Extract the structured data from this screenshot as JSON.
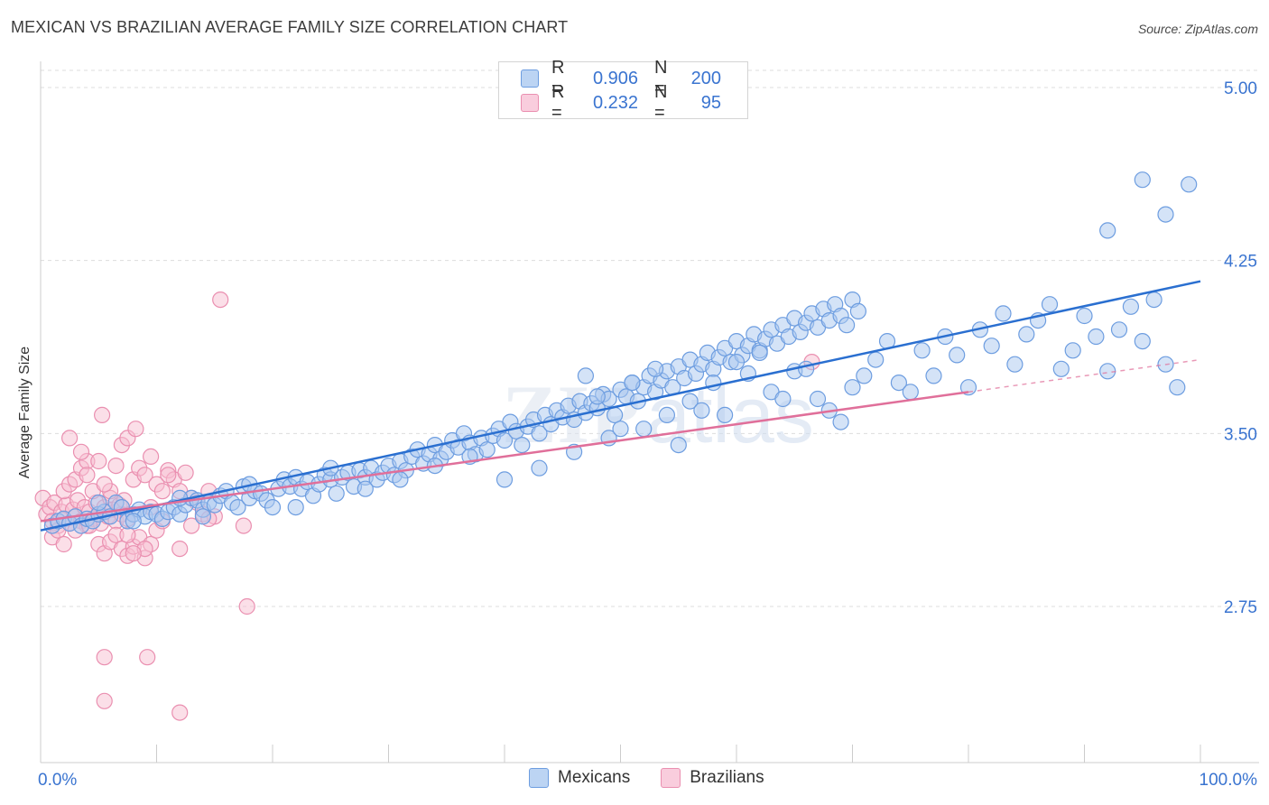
{
  "header": {
    "title": "MEXICAN VS BRAZILIAN AVERAGE FAMILY SIZE CORRELATION CHART",
    "source": "Source: ZipAtlas.com"
  },
  "watermark": "ZIPatlas",
  "legend": {
    "rows": [
      {
        "r_label": "R =",
        "r_value": "0.906",
        "n_label": "N =",
        "n_value": "200",
        "color": "#8fb6ea"
      },
      {
        "r_label": "R =",
        "r_value": "0.232",
        "n_label": "N =",
        "n_value": "95",
        "color": "#f2a8c0"
      }
    ]
  },
  "bottom_legend": [
    {
      "label": "Mexicans",
      "color": "#8fb6ea"
    },
    {
      "label": "Brazilians",
      "color": "#f2a8c0"
    }
  ],
  "colors": {
    "blue_fill": "#a9c8f0",
    "blue_stroke": "#6d9de0",
    "blue_line": "#2a6fd0",
    "pink_fill": "#f7c0d2",
    "pink_stroke": "#ea8fb0",
    "pink_line": "#e06f9a",
    "tick_label": "#3a74d0",
    "grid": "#dddddd"
  },
  "chart_data": {
    "type": "scatter",
    "title": "MEXICAN VS BRAZILIAN AVERAGE FAMILY SIZE CORRELATION CHART",
    "xlabel": "",
    "ylabel": "Average Family Size",
    "xlim": [
      0,
      100
    ],
    "ylim": [
      2.0,
      5.0
    ],
    "x_tick_labels": [
      "0.0%",
      "100.0%"
    ],
    "y_ticks": [
      2.75,
      3.5,
      4.25,
      5.0
    ],
    "y_tick_labels": [
      "2.75",
      "3.50",
      "4.25",
      "5.00"
    ],
    "grid": true,
    "legend_position": "top-center",
    "series": [
      {
        "name": "Mexicans",
        "r": 0.906,
        "n": 200,
        "trend": {
          "x": [
            0,
            100
          ],
          "y": [
            3.08,
            4.16
          ]
        },
        "points": [
          [
            1,
            3.1
          ],
          [
            1.5,
            3.12
          ],
          [
            2,
            3.13
          ],
          [
            2.5,
            3.11
          ],
          [
            3,
            3.14
          ],
          [
            3.5,
            3.1
          ],
          [
            4,
            3.13
          ],
          [
            4.5,
            3.12
          ],
          [
            5,
            3.15
          ],
          [
            5.5,
            3.16
          ],
          [
            6,
            3.14
          ],
          [
            6.5,
            3.2
          ],
          [
            7,
            3.18
          ],
          [
            7.5,
            3.12
          ],
          [
            8,
            3.15
          ],
          [
            8.5,
            3.17
          ],
          [
            9,
            3.14
          ],
          [
            9.5,
            3.16
          ],
          [
            10,
            3.15
          ],
          [
            10.5,
            3.13
          ],
          [
            11,
            3.16
          ],
          [
            11.5,
            3.18
          ],
          [
            12,
            3.15
          ],
          [
            12.5,
            3.19
          ],
          [
            13,
            3.22
          ],
          [
            13.5,
            3.21
          ],
          [
            14,
            3.17
          ],
          [
            14.5,
            3.2
          ],
          [
            15,
            3.19
          ],
          [
            15.5,
            3.23
          ],
          [
            16,
            3.25
          ],
          [
            16.5,
            3.2
          ],
          [
            17,
            3.18
          ],
          [
            17.5,
            3.27
          ],
          [
            18,
            3.22
          ],
          [
            18.5,
            3.25
          ],
          [
            19,
            3.24
          ],
          [
            19.5,
            3.21
          ],
          [
            20,
            3.18
          ],
          [
            20.5,
            3.26
          ],
          [
            21,
            3.3
          ],
          [
            21.5,
            3.27
          ],
          [
            22,
            3.31
          ],
          [
            22.5,
            3.26
          ],
          [
            23,
            3.29
          ],
          [
            23.5,
            3.23
          ],
          [
            24,
            3.28
          ],
          [
            24.5,
            3.32
          ],
          [
            25,
            3.3
          ],
          [
            25.5,
            3.24
          ],
          [
            26,
            3.31
          ],
          [
            26.5,
            3.33
          ],
          [
            27,
            3.27
          ],
          [
            27.5,
            3.34
          ],
          [
            28,
            3.31
          ],
          [
            28.5,
            3.35
          ],
          [
            29,
            3.3
          ],
          [
            29.5,
            3.33
          ],
          [
            30,
            3.36
          ],
          [
            30.5,
            3.32
          ],
          [
            31,
            3.38
          ],
          [
            31.5,
            3.34
          ],
          [
            32,
            3.4
          ],
          [
            32.5,
            3.43
          ],
          [
            33,
            3.37
          ],
          [
            33.5,
            3.41
          ],
          [
            34,
            3.45
          ],
          [
            34.5,
            3.39
          ],
          [
            35,
            3.42
          ],
          [
            35.5,
            3.47
          ],
          [
            36,
            3.44
          ],
          [
            36.5,
            3.5
          ],
          [
            37,
            3.46
          ],
          [
            37.5,
            3.41
          ],
          [
            38,
            3.48
          ],
          [
            38.5,
            3.43
          ],
          [
            39,
            3.49
          ],
          [
            39.5,
            3.52
          ],
          [
            40,
            3.47
          ],
          [
            40.5,
            3.55
          ],
          [
            41,
            3.51
          ],
          [
            41.5,
            3.45
          ],
          [
            42,
            3.53
          ],
          [
            42.5,
            3.56
          ],
          [
            43,
            3.5
          ],
          [
            43.5,
            3.58
          ],
          [
            44,
            3.54
          ],
          [
            44.5,
            3.6
          ],
          [
            45,
            3.57
          ],
          [
            45.5,
            3.62
          ],
          [
            46,
            3.56
          ],
          [
            46.5,
            3.64
          ],
          [
            47,
            3.59
          ],
          [
            47.5,
            3.63
          ],
          [
            48,
            3.61
          ],
          [
            48.5,
            3.67
          ],
          [
            49,
            3.65
          ],
          [
            49.5,
            3.58
          ],
          [
            50,
            3.69
          ],
          [
            50.5,
            3.66
          ],
          [
            51,
            3.72
          ],
          [
            51.5,
            3.64
          ],
          [
            52,
            3.7
          ],
          [
            52.5,
            3.75
          ],
          [
            53,
            3.68
          ],
          [
            53.5,
            3.73
          ],
          [
            54,
            3.77
          ],
          [
            54.5,
            3.7
          ],
          [
            55,
            3.79
          ],
          [
            55.5,
            3.74
          ],
          [
            56,
            3.82
          ],
          [
            56.5,
            3.76
          ],
          [
            57,
            3.8
          ],
          [
            57.5,
            3.85
          ],
          [
            58,
            3.78
          ],
          [
            58.5,
            3.83
          ],
          [
            59,
            3.87
          ],
          [
            59.5,
            3.81
          ],
          [
            60,
            3.9
          ],
          [
            60.5,
            3.84
          ],
          [
            61,
            3.88
          ],
          [
            61.5,
            3.93
          ],
          [
            62,
            3.86
          ],
          [
            62.5,
            3.91
          ],
          [
            63,
            3.95
          ],
          [
            63.5,
            3.89
          ],
          [
            64,
            3.97
          ],
          [
            64.5,
            3.92
          ],
          [
            65,
            4.0
          ],
          [
            65.5,
            3.94
          ],
          [
            66,
            3.98
          ],
          [
            66.5,
            4.02
          ],
          [
            67,
            3.96
          ],
          [
            67.5,
            4.04
          ],
          [
            68,
            3.99
          ],
          [
            68.5,
            4.06
          ],
          [
            69,
            4.01
          ],
          [
            69.5,
            3.97
          ],
          [
            70,
            4.08
          ],
          [
            70.5,
            4.03
          ],
          [
            5,
            3.2
          ],
          [
            8,
            3.12
          ],
          [
            12,
            3.22
          ],
          [
            14,
            3.14
          ],
          [
            18,
            3.28
          ],
          [
            22,
            3.18
          ],
          [
            25,
            3.35
          ],
          [
            28,
            3.26
          ],
          [
            31,
            3.3
          ],
          [
            34,
            3.36
          ],
          [
            37,
            3.4
          ],
          [
            40,
            3.3
          ],
          [
            43,
            3.35
          ],
          [
            46,
            3.42
          ],
          [
            47,
            3.75
          ],
          [
            48,
            3.66
          ],
          [
            49,
            3.48
          ],
          [
            50,
            3.52
          ],
          [
            51,
            3.72
          ],
          [
            52,
            3.52
          ],
          [
            53,
            3.78
          ],
          [
            54,
            3.58
          ],
          [
            55,
            3.45
          ],
          [
            56,
            3.64
          ],
          [
            57,
            3.6
          ],
          [
            58,
            3.72
          ],
          [
            59,
            3.58
          ],
          [
            60,
            3.81
          ],
          [
            61,
            3.76
          ],
          [
            62,
            3.85
          ],
          [
            63,
            3.68
          ],
          [
            64,
            3.65
          ],
          [
            65,
            3.77
          ],
          [
            66,
            3.78
          ],
          [
            67,
            3.65
          ],
          [
            68,
            3.6
          ],
          [
            69,
            3.55
          ],
          [
            70,
            3.7
          ],
          [
            71,
            3.75
          ],
          [
            72,
            3.82
          ],
          [
            73,
            3.9
          ],
          [
            74,
            3.72
          ],
          [
            75,
            3.68
          ],
          [
            76,
            3.86
          ],
          [
            77,
            3.75
          ],
          [
            78,
            3.92
          ],
          [
            79,
            3.84
          ],
          [
            80,
            3.7
          ],
          [
            81,
            3.95
          ],
          [
            82,
            3.88
          ],
          [
            83,
            4.02
          ],
          [
            84,
            3.8
          ],
          [
            85,
            3.93
          ],
          [
            86,
            3.99
          ],
          [
            87,
            4.06
          ],
          [
            88,
            3.78
          ],
          [
            89,
            3.86
          ],
          [
            90,
            4.01
          ],
          [
            91,
            3.92
          ],
          [
            92,
            3.77
          ],
          [
            93,
            3.95
          ],
          [
            94,
            4.05
          ],
          [
            95,
            3.9
          ],
          [
            96,
            4.08
          ],
          [
            97,
            3.8
          ],
          [
            98,
            3.7
          ],
          [
            95,
            4.6
          ],
          [
            97,
            4.45
          ],
          [
            99,
            4.58
          ],
          [
            92,
            4.38
          ]
        ]
      },
      {
        "name": "Brazilians",
        "r": 0.232,
        "n": 95,
        "trend": {
          "x": [
            0,
            80
          ],
          "y": [
            3.12,
            3.68
          ]
        },
        "trend_dashed": {
          "x": [
            80,
            100
          ],
          "y": [
            3.68,
            3.82
          ]
        },
        "points": [
          [
            0.2,
            3.22
          ],
          [
            0.5,
            3.15
          ],
          [
            0.8,
            3.18
          ],
          [
            1,
            3.12
          ],
          [
            1.2,
            3.2
          ],
          [
            1.5,
            3.1
          ],
          [
            1.8,
            3.16
          ],
          [
            2,
            3.13
          ],
          [
            2.2,
            3.19
          ],
          [
            2.5,
            3.11
          ],
          [
            2.8,
            3.17
          ],
          [
            3,
            3.14
          ],
          [
            3.2,
            3.21
          ],
          [
            3.5,
            3.12
          ],
          [
            3.8,
            3.18
          ],
          [
            4,
            3.1
          ],
          [
            4.2,
            3.16
          ],
          [
            4.5,
            3.13
          ],
          [
            4.8,
            3.2
          ],
          [
            5,
            3.15
          ],
          [
            5.2,
            3.11
          ],
          [
            5.5,
            3.18
          ],
          [
            5.8,
            3.14
          ],
          [
            6,
            3.22
          ],
          [
            6.2,
            3.17
          ],
          [
            6.5,
            3.12
          ],
          [
            6.8,
            3.19
          ],
          [
            7,
            3.15
          ],
          [
            7.2,
            3.21
          ],
          [
            7.5,
            3.13
          ],
          [
            1,
            3.05
          ],
          [
            1.5,
            3.08
          ],
          [
            2,
            3.25
          ],
          [
            2.5,
            3.28
          ],
          [
            3,
            3.3
          ],
          [
            3.5,
            3.35
          ],
          [
            4,
            3.38
          ],
          [
            4.5,
            3.25
          ],
          [
            5,
            3.02
          ],
          [
            5.5,
            2.98
          ],
          [
            6,
            3.03
          ],
          [
            6.5,
            3.06
          ],
          [
            7,
            3.0
          ],
          [
            7.5,
            2.97
          ],
          [
            8,
            3.01
          ],
          [
            8.5,
            3.05
          ],
          [
            9,
            2.96
          ],
          [
            9.5,
            3.02
          ],
          [
            10,
            3.08
          ],
          [
            10.5,
            3.12
          ],
          [
            2.5,
            3.48
          ],
          [
            3.5,
            3.42
          ],
          [
            5,
            3.38
          ],
          [
            5.3,
            3.58
          ],
          [
            6.5,
            3.36
          ],
          [
            7,
            3.45
          ],
          [
            7.5,
            3.48
          ],
          [
            8.2,
            3.52
          ],
          [
            8,
            3.3
          ],
          [
            8.5,
            3.35
          ],
          [
            9,
            3.32
          ],
          [
            9.5,
            3.4
          ],
          [
            10,
            3.28
          ],
          [
            11,
            3.34
          ],
          [
            11.5,
            3.3
          ],
          [
            12,
            3.25
          ],
          [
            12.5,
            3.33
          ],
          [
            13,
            3.22
          ],
          [
            13.5,
            3.2
          ],
          [
            14,
            3.15
          ],
          [
            12,
            3.0
          ],
          [
            13,
            3.1
          ],
          [
            14.5,
            3.25
          ],
          [
            15,
            3.14
          ],
          [
            9,
            3.0
          ],
          [
            8,
            2.98
          ],
          [
            7.5,
            3.06
          ],
          [
            6,
            3.25
          ],
          [
            5.5,
            3.28
          ],
          [
            4,
            3.32
          ],
          [
            11,
            3.32
          ],
          [
            10.5,
            3.25
          ],
          [
            9.5,
            3.18
          ],
          [
            3,
            3.08
          ],
          [
            2,
            3.02
          ],
          [
            15.5,
            4.08
          ],
          [
            17.5,
            3.1
          ],
          [
            17.8,
            2.75
          ],
          [
            5.5,
            2.53
          ],
          [
            9.2,
            2.53
          ],
          [
            5.5,
            2.34
          ],
          [
            12,
            2.29
          ],
          [
            66.5,
            3.81
          ],
          [
            14.5,
            3.13
          ],
          [
            4.2,
            3.1
          ]
        ]
      }
    ]
  }
}
